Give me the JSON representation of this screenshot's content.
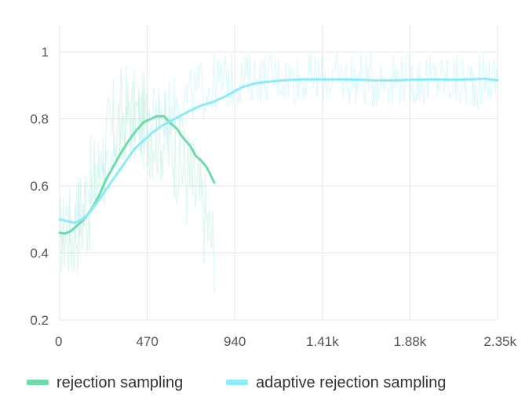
{
  "chart_data": {
    "type": "line",
    "title": "",
    "xlabel": "",
    "ylabel": "",
    "xlim": [
      0,
      2350
    ],
    "ylim": [
      0.2,
      1.08
    ],
    "x_ticks": [
      {
        "value": 0,
        "label": "0"
      },
      {
        "value": 470,
        "label": "470"
      },
      {
        "value": 940,
        "label": "940"
      },
      {
        "value": 1410,
        "label": "1.41k"
      },
      {
        "value": 1880,
        "label": "1.88k"
      },
      {
        "value": 2350,
        "label": "2.35k"
      }
    ],
    "y_ticks": [
      {
        "value": 0.2,
        "label": "0.2"
      },
      {
        "value": 0.4,
        "label": "0.4"
      },
      {
        "value": 0.6,
        "label": "0.6"
      },
      {
        "value": 0.8,
        "label": "0.8"
      },
      {
        "value": 1.0,
        "label": "1"
      }
    ],
    "grid": true,
    "legend_position": "bottom",
    "series": [
      {
        "name": "rejection sampling",
        "color": "#6fdba8",
        "raw_band": {
          "x_range": [
            0,
            830
          ],
          "upper": [
            0.58,
            0.62,
            0.72,
            0.8,
            0.92,
            0.98,
            0.95,
            0.93,
            0.9,
            0.85,
            0.8,
            0.7,
            0.55
          ],
          "lower": [
            0.33,
            0.3,
            0.36,
            0.45,
            0.58,
            0.64,
            0.66,
            0.62,
            0.6,
            0.55,
            0.45,
            0.38,
            0.28
          ]
        },
        "points": [
          {
            "x": 0,
            "y": 0.46
          },
          {
            "x": 30,
            "y": 0.458
          },
          {
            "x": 60,
            "y": 0.465
          },
          {
            "x": 90,
            "y": 0.48
          },
          {
            "x": 130,
            "y": 0.5
          },
          {
            "x": 170,
            "y": 0.53
          },
          {
            "x": 210,
            "y": 0.57
          },
          {
            "x": 250,
            "y": 0.62
          },
          {
            "x": 290,
            "y": 0.66
          },
          {
            "x": 330,
            "y": 0.7
          },
          {
            "x": 370,
            "y": 0.735
          },
          {
            "x": 410,
            "y": 0.765
          },
          {
            "x": 450,
            "y": 0.79
          },
          {
            "x": 490,
            "y": 0.8
          },
          {
            "x": 520,
            "y": 0.808
          },
          {
            "x": 560,
            "y": 0.808
          },
          {
            "x": 590,
            "y": 0.79
          },
          {
            "x": 630,
            "y": 0.77
          },
          {
            "x": 660,
            "y": 0.745
          },
          {
            "x": 700,
            "y": 0.72
          },
          {
            "x": 730,
            "y": 0.69
          },
          {
            "x": 760,
            "y": 0.675
          },
          {
            "x": 790,
            "y": 0.655
          },
          {
            "x": 830,
            "y": 0.61
          }
        ]
      },
      {
        "name": "adaptive rejection sampling",
        "color": "#8eeaf7",
        "raw_band": {
          "x_range": [
            0,
            2350
          ],
          "upper": [
            0.56,
            0.62,
            0.7,
            0.8,
            0.88,
            0.9,
            0.92,
            0.95,
            0.99,
            1.0,
            1.0,
            1.0,
            1.0,
            1.0,
            1.0,
            1.0,
            1.0,
            1.0,
            1.0,
            1.0,
            1.0,
            1.0,
            1.0,
            1.0,
            1.0
          ],
          "lower": [
            0.38,
            0.44,
            0.52,
            0.6,
            0.66,
            0.7,
            0.74,
            0.78,
            0.8,
            0.82,
            0.84,
            0.85,
            0.85,
            0.84,
            0.85,
            0.84,
            0.84,
            0.83,
            0.84,
            0.84,
            0.83,
            0.84,
            0.82,
            0.83,
            0.84
          ]
        },
        "points": [
          {
            "x": 0,
            "y": 0.5
          },
          {
            "x": 40,
            "y": 0.495
          },
          {
            "x": 80,
            "y": 0.49
          },
          {
            "x": 120,
            "y": 0.5
          },
          {
            "x": 160,
            "y": 0.52
          },
          {
            "x": 200,
            "y": 0.55
          },
          {
            "x": 250,
            "y": 0.59
          },
          {
            "x": 300,
            "y": 0.63
          },
          {
            "x": 350,
            "y": 0.67
          },
          {
            "x": 400,
            "y": 0.71
          },
          {
            "x": 450,
            "y": 0.735
          },
          {
            "x": 500,
            "y": 0.76
          },
          {
            "x": 550,
            "y": 0.78
          },
          {
            "x": 600,
            "y": 0.795
          },
          {
            "x": 650,
            "y": 0.81
          },
          {
            "x": 700,
            "y": 0.825
          },
          {
            "x": 760,
            "y": 0.84
          },
          {
            "x": 820,
            "y": 0.85
          },
          {
            "x": 880,
            "y": 0.865
          },
          {
            "x": 930,
            "y": 0.88
          },
          {
            "x": 980,
            "y": 0.895
          },
          {
            "x": 1040,
            "y": 0.905
          },
          {
            "x": 1100,
            "y": 0.91
          },
          {
            "x": 1200,
            "y": 0.915
          },
          {
            "x": 1300,
            "y": 0.918
          },
          {
            "x": 1400,
            "y": 0.918
          },
          {
            "x": 1500,
            "y": 0.918
          },
          {
            "x": 1600,
            "y": 0.917
          },
          {
            "x": 1700,
            "y": 0.915
          },
          {
            "x": 1800,
            "y": 0.915
          },
          {
            "x": 1900,
            "y": 0.917
          },
          {
            "x": 2000,
            "y": 0.918
          },
          {
            "x": 2100,
            "y": 0.917
          },
          {
            "x": 2200,
            "y": 0.918
          },
          {
            "x": 2280,
            "y": 0.92
          },
          {
            "x": 2350,
            "y": 0.915
          }
        ]
      }
    ]
  }
}
